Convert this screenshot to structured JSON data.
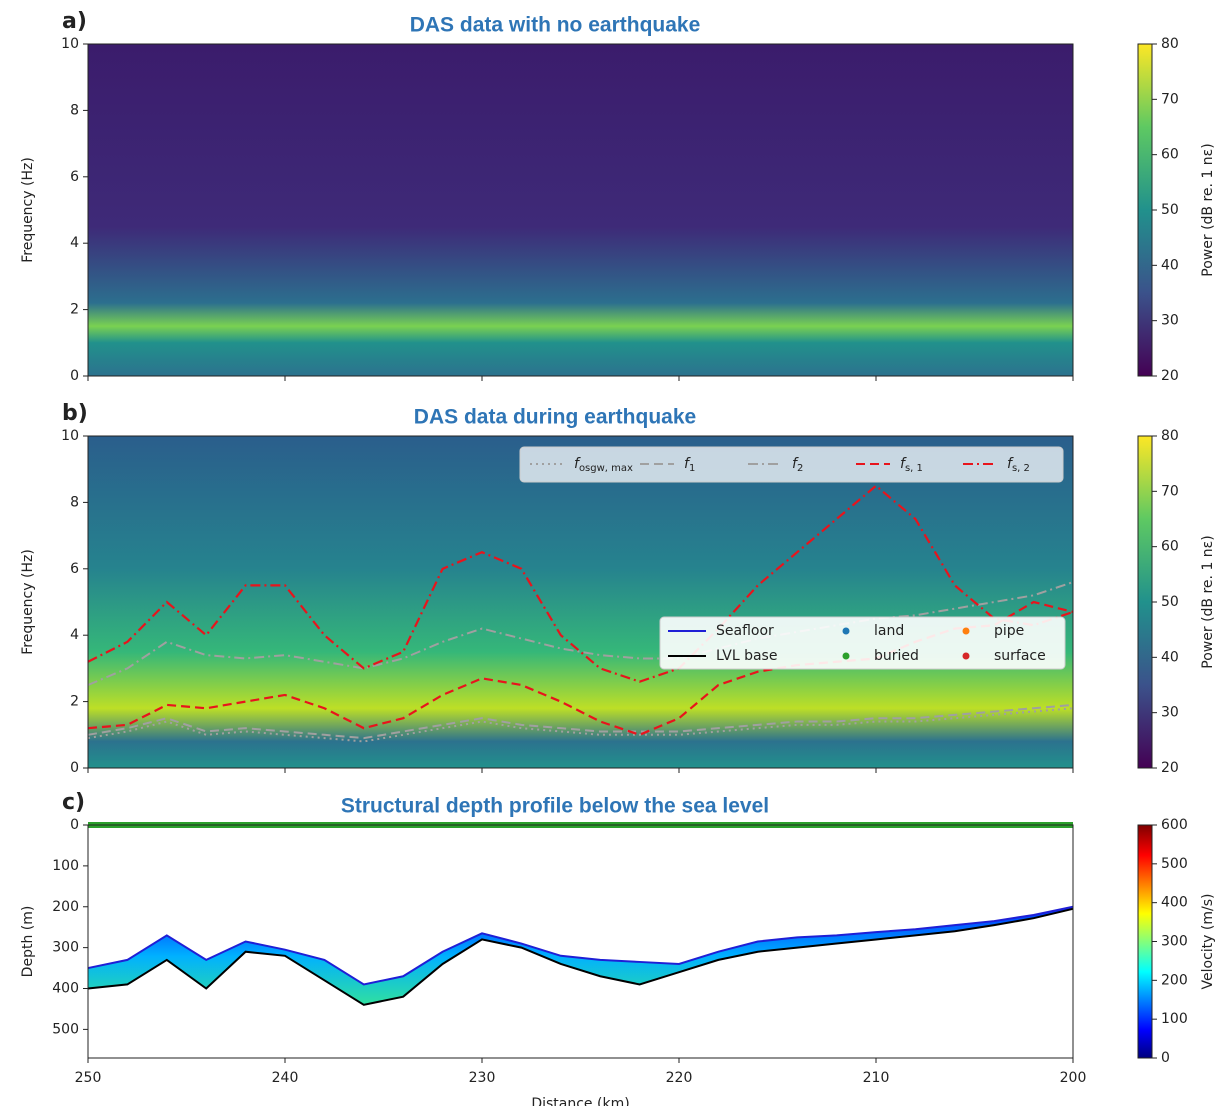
{
  "chart_data": [
    {
      "type": "heatmap",
      "panel_label": "a)",
      "title": "DAS data with no earthquake",
      "ylabel": "Frequency (Hz)",
      "ylim": [
        0,
        10
      ],
      "yticks": [
        0,
        2,
        4,
        6,
        8,
        10
      ],
      "xlim": [
        250,
        200
      ],
      "xticks": [
        250,
        240,
        230,
        220,
        210,
        200
      ],
      "xtick_labels": false,
      "colormap": "viridis",
      "clim": [
        20,
        80
      ],
      "cticks": [
        20,
        30,
        40,
        50,
        60,
        70,
        80
      ],
      "clabel": "Power (dB re. 1 nε)"
    },
    {
      "type": "heatmap",
      "panel_label": "b)",
      "title": "DAS data during earthquake",
      "ylabel": "Frequency (Hz)",
      "ylim": [
        0,
        10
      ],
      "yticks": [
        0,
        2,
        4,
        6,
        8,
        10
      ],
      "xlim": [
        250,
        200
      ],
      "xticks": [
        250,
        240,
        230,
        220,
        210,
        200
      ],
      "xtick_labels": false,
      "colormap": "viridis",
      "clim": [
        20,
        80
      ],
      "cticks": [
        20,
        30,
        40,
        50,
        60,
        70,
        80
      ],
      "clabel": "Power (dB re. 1 nε)",
      "legend": "upper right",
      "x": [
        250,
        248,
        246,
        244,
        242,
        240,
        238,
        236,
        234,
        232,
        230,
        228,
        226,
        224,
        222,
        220,
        218,
        216,
        214,
        212,
        210,
        208,
        206,
        204,
        202,
        200
      ],
      "series": [
        {
          "name": "f",
          "subscript": "osgw, max",
          "color": "#a0a0a0",
          "dash": "dotted",
          "values": [
            0.9,
            1.1,
            1.4,
            1.0,
            1.1,
            1.0,
            0.9,
            0.8,
            1.0,
            1.2,
            1.4,
            1.2,
            1.1,
            1.0,
            1.0,
            1.0,
            1.1,
            1.2,
            1.3,
            1.3,
            1.4,
            1.4,
            1.5,
            1.6,
            1.7,
            1.8
          ]
        },
        {
          "name": "f",
          "subscript": "1",
          "color": "#a0a0a0",
          "dash": "dashed",
          "values": [
            1.0,
            1.2,
            1.5,
            1.1,
            1.2,
            1.1,
            1.0,
            0.9,
            1.1,
            1.3,
            1.5,
            1.3,
            1.2,
            1.1,
            1.1,
            1.1,
            1.2,
            1.3,
            1.4,
            1.4,
            1.5,
            1.5,
            1.6,
            1.7,
            1.8,
            1.9
          ]
        },
        {
          "name": "f",
          "subscript": "2",
          "color": "#a0a0a0",
          "dash": "dashdot",
          "values": [
            2.5,
            3.0,
            3.8,
            3.4,
            3.3,
            3.4,
            3.2,
            3.0,
            3.3,
            3.8,
            4.2,
            3.9,
            3.6,
            3.4,
            3.3,
            3.3,
            3.6,
            3.9,
            4.1,
            4.3,
            4.5,
            4.6,
            4.8,
            5.0,
            5.2,
            5.6
          ]
        },
        {
          "name": "f",
          "subscript": "s, 1",
          "color": "#e8141c",
          "dash": "dashed",
          "values": [
            1.2,
            1.3,
            1.9,
            1.8,
            2.0,
            2.2,
            1.8,
            1.2,
            1.5,
            2.2,
            2.7,
            2.5,
            2.0,
            1.4,
            1.0,
            1.5,
            2.5,
            2.9,
            3.1,
            3.2,
            3.3,
            3.8,
            4.2,
            4.3,
            5.0,
            4.7
          ]
        },
        {
          "name": "f",
          "subscript": "s, 2",
          "color": "#e8141c",
          "dash": "dashdot",
          "values": [
            3.2,
            3.8,
            5.0,
            4.0,
            5.5,
            5.5,
            4.0,
            3.0,
            3.5,
            6.0,
            6.5,
            6.0,
            4.0,
            3.0,
            2.6,
            3.0,
            4.2,
            5.5,
            6.5,
            7.5,
            8.5,
            7.5,
            5.5,
            4.5,
            4.3,
            4.7
          ]
        }
      ]
    },
    {
      "type": "profile",
      "panel_label": "c)",
      "title": "Structural depth profile below the sea level",
      "ylabel": "Depth (m)",
      "xlabel": "Distance (km)",
      "ylim": [
        570,
        0
      ],
      "yticks": [
        0,
        100,
        200,
        300,
        400,
        500
      ],
      "xlim": [
        250,
        200
      ],
      "xticks": [
        250,
        240,
        230,
        220,
        210,
        200
      ],
      "xtick_labels": true,
      "colormap": "jet",
      "clim": [
        0,
        600
      ],
      "cticks": [
        0,
        100,
        200,
        300,
        400,
        500,
        600
      ],
      "clabel": "Velocity (m/s)",
      "legend": "lower right",
      "x": [
        250,
        248,
        246,
        244,
        242,
        240,
        238,
        236,
        234,
        232,
        230,
        228,
        226,
        224,
        222,
        220,
        218,
        216,
        214,
        212,
        210,
        208,
        206,
        204,
        202,
        200
      ],
      "series": [
        {
          "name": "Seafloor",
          "color": "#1f1fd6",
          "values": [
            350,
            330,
            270,
            330,
            285,
            305,
            330,
            390,
            370,
            310,
            265,
            290,
            320,
            330,
            335,
            340,
            310,
            285,
            275,
            270,
            262,
            255,
            245,
            235,
            220,
            200
          ]
        },
        {
          "name": "LVL base",
          "color": "#000000",
          "values": [
            400,
            390,
            330,
            400,
            310,
            320,
            380,
            440,
            420,
            340,
            280,
            300,
            340,
            370,
            390,
            360,
            330,
            310,
            300,
            290,
            280,
            270,
            260,
            245,
            228,
            205
          ]
        }
      ],
      "marker_classes": [
        {
          "name": "land",
          "color": "#1f77b4"
        },
        {
          "name": "buried",
          "color": "#2ca02c"
        },
        {
          "name": "pipe",
          "color": "#ff7f0e"
        },
        {
          "name": "surface",
          "color": "#d62728"
        }
      ]
    }
  ]
}
